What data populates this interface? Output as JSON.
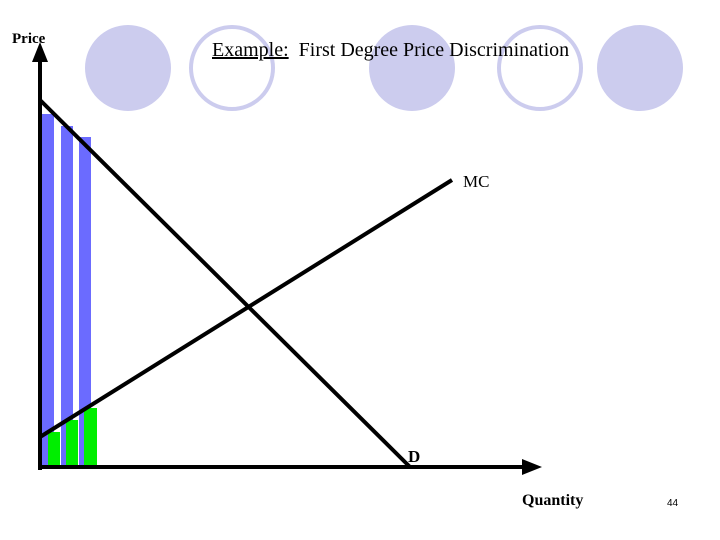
{
  "title": {
    "label": "Example:",
    "text": "First Degree Price Discrimination"
  },
  "axes": {
    "y_label": "Price",
    "x_label": "Quantity"
  },
  "curves": {
    "mc": "MC",
    "demand": "D"
  },
  "page_number": "44"
}
